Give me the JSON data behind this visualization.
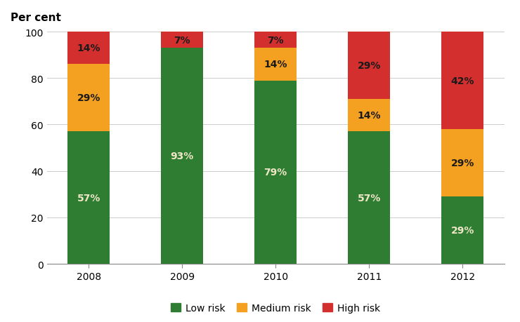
{
  "categories": [
    "2008",
    "2009",
    "2010",
    "2011",
    "2012"
  ],
  "low_risk": [
    57,
    93,
    79,
    57,
    29
  ],
  "medium_risk": [
    29,
    0,
    14,
    14,
    29
  ],
  "high_risk": [
    14,
    7,
    7,
    29,
    42
  ],
  "low_color": "#2e7d32",
  "medium_color": "#f4a020",
  "high_color": "#d32f2f",
  "ylabel": "Per cent",
  "ylim": [
    0,
    100
  ],
  "yticks": [
    0,
    20,
    40,
    60,
    80,
    100
  ],
  "legend_labels": [
    "Low risk",
    "Medium risk",
    "High risk"
  ],
  "bar_width": 0.45,
  "label_fontsize": 10,
  "axis_fontsize": 10,
  "legend_fontsize": 10,
  "low_text_color": "#f0e6c8",
  "medium_text_color": "#1a1a1a",
  "high_text_color": "#1a1a1a"
}
